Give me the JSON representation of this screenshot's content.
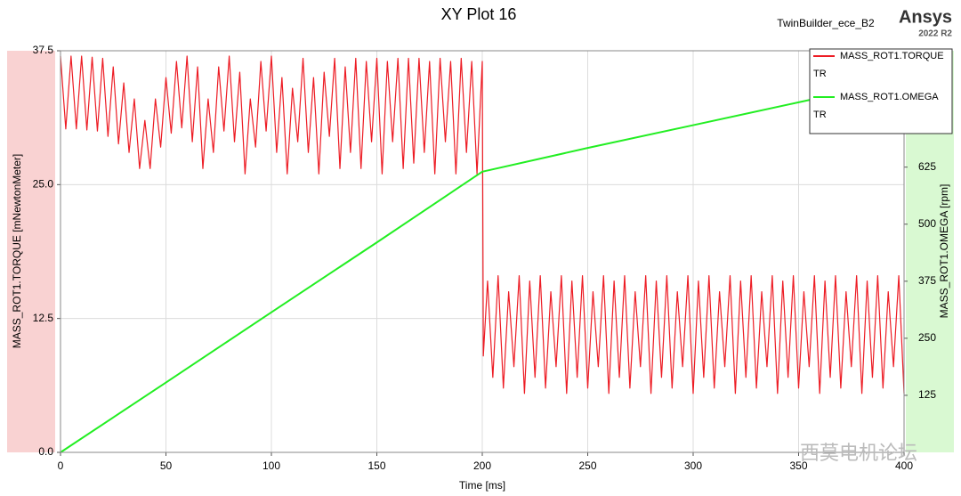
{
  "chart_data": {
    "type": "line",
    "title": "XY Plot 16",
    "design_name": "TwinBuilder_ece_B2",
    "brand": "Ansys",
    "version": "2022 R2",
    "watermark": "西莫电机论坛",
    "xlabel": "Time [ms]",
    "ylabel": "MASS_ROT1.TORQUE [mNewtonMeter]",
    "y2label": "MASS_ROT1.OMEGA [rpm]",
    "xlim": [
      0,
      400
    ],
    "xticks": [
      0,
      50,
      100,
      150,
      200,
      250,
      300,
      350,
      400
    ],
    "ylim": [
      0,
      37.5
    ],
    "yticks": [
      {
        "value": 0,
        "label": "0.0"
      },
      12.5,
      {
        "value": 25,
        "label": "25.0"
      },
      37.5
    ],
    "y2lim": [
      0,
      880
    ],
    "y2ticks": [
      125,
      250,
      375,
      500,
      625
    ],
    "grid": true,
    "legend": "top-right",
    "series": [
      {
        "name": "MASS_ROT1.TORQUE",
        "context": "TR",
        "color": "#ed1c24",
        "axis": "y",
        "x": [
          0,
          2.5,
          5,
          7.5,
          10,
          12.5,
          15,
          17.5,
          20,
          22.5,
          25,
          27.5,
          30,
          32.5,
          35,
          37.5,
          40,
          42.5,
          45,
          47.5,
          50,
          52.5,
          55,
          57.5,
          60,
          62.5,
          65,
          67.5,
          70,
          72.5,
          75,
          77.5,
          80,
          82.5,
          85,
          87.5,
          90,
          92.5,
          95,
          97.5,
          100,
          102.5,
          105,
          107.5,
          110,
          112.5,
          115,
          117.5,
          120,
          122.5,
          125,
          127.5,
          130,
          132.5,
          135,
          137.5,
          140,
          142.5,
          145,
          147.5,
          150,
          152.5,
          155,
          157.5,
          160,
          162.5,
          165,
          167.5,
          170,
          172.5,
          175,
          177.5,
          180,
          182.5,
          185,
          187.5,
          190,
          192.5,
          195,
          197.5,
          200,
          200.5,
          202.5,
          205,
          207.5,
          210,
          212.5,
          215,
          217.5,
          220,
          222.5,
          225,
          227.5,
          230,
          232.5,
          235,
          237.5,
          240,
          242.5,
          245,
          247.5,
          250,
          252.5,
          255,
          257.5,
          260,
          262.5,
          265,
          267.5,
          270,
          272.5,
          275,
          277.5,
          280,
          282.5,
          285,
          287.5,
          290,
          292.5,
          295,
          297.5,
          300,
          302.5,
          305,
          307.5,
          310,
          312.5,
          315,
          317.5,
          320,
          322.5,
          325,
          327.5,
          330,
          332.5,
          335,
          337.5,
          340,
          342.5,
          345,
          347.5,
          350,
          352.5,
          355,
          357.5,
          360,
          362.5,
          365,
          367.5,
          370,
          372.5,
          375,
          377.5,
          380,
          382.5,
          385,
          387.5,
          390,
          392.5,
          395,
          397.5,
          400
        ],
        "values": [
          37,
          30.2,
          37,
          30.2,
          37,
          30.1,
          36.9,
          30,
          36.8,
          29.5,
          36,
          28.8,
          34.5,
          28,
          33,
          26.5,
          31,
          26.5,
          33,
          28.5,
          35,
          29.8,
          36.5,
          30.3,
          37,
          29,
          36,
          26.5,
          33,
          28,
          36,
          30,
          37,
          29,
          35.5,
          26,
          33,
          28.5,
          36.5,
          30,
          37,
          28,
          35,
          26,
          34,
          29,
          36.8,
          28,
          35,
          26,
          35.5,
          29.5,
          36.8,
          26.5,
          36,
          28,
          36.8,
          26.5,
          36.5,
          29,
          36.8,
          26,
          36.5,
          29,
          36.8,
          26.5,
          36.8,
          27,
          36.8,
          28,
          36.5,
          26,
          36.8,
          29,
          36.5,
          26,
          36.8,
          28,
          36.5,
          26,
          36.5,
          9,
          16,
          7,
          16.5,
          6,
          15,
          8,
          16.5,
          5.5,
          16,
          7,
          16.5,
          6,
          15,
          8,
          16.5,
          5.5,
          16,
          7,
          16.5,
          6,
          15,
          8,
          16.5,
          5.5,
          16,
          7,
          16.5,
          6,
          15,
          8,
          16.5,
          5.5,
          16,
          7,
          16.5,
          6,
          15,
          8,
          16.5,
          5.5,
          16,
          7,
          16.5,
          6,
          15,
          8,
          16.5,
          5.5,
          16,
          7,
          16.5,
          6,
          15,
          8,
          16.5,
          5.5,
          16,
          7,
          16.5,
          6,
          15,
          8,
          16.5,
          5.5,
          16,
          7,
          16.5,
          6,
          15,
          8,
          16.5,
          5.5,
          16,
          7,
          16.5,
          6,
          15,
          8,
          16.5,
          5.5
        ]
      },
      {
        "name": "MASS_ROT1.OMEGA",
        "context": "TR",
        "color": "#22ee22",
        "axis": "y2",
        "x": [
          0,
          50,
          100,
          150,
          200,
          250,
          300,
          350,
          400
        ],
        "values": [
          0,
          153,
          307,
          460,
          615,
          667,
          717,
          767,
          817
        ]
      }
    ]
  }
}
